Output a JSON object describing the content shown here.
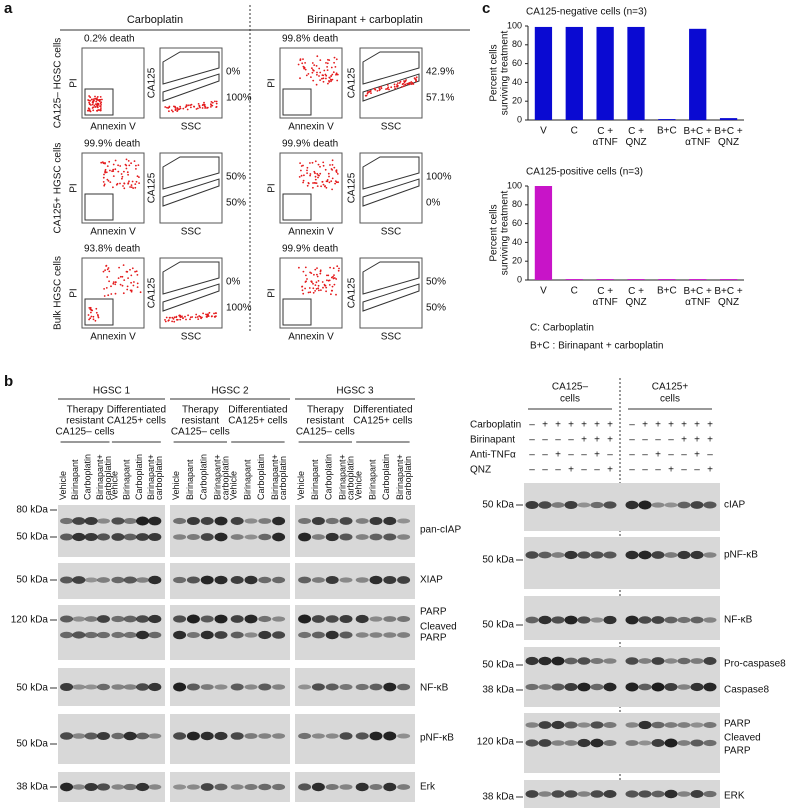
{
  "panel_labels": [
    "a",
    "b",
    "c"
  ],
  "panel_a": {
    "column_headers": [
      "Carboplatin",
      "Birinapant + carboplatin"
    ],
    "axis_labels": {
      "pi": "PI",
      "annexin": "Annexin V",
      "ca125": "CA125",
      "ssc": "SSC"
    },
    "rows": [
      {
        "label": "CA125– HGSC cells",
        "plots": [
          {
            "death": "0.2% death",
            "gates": [
              "0%",
              "100%"
            ]
          },
          {
            "death": "99.8% death",
            "gates": [
              "42.9%",
              "57.1%"
            ]
          }
        ]
      },
      {
        "label": "CA125+ HGSC cells",
        "plots": [
          {
            "death": "99.9% death",
            "gates": [
              "50%",
              "50%"
            ]
          },
          {
            "death": "99.9% death",
            "gates": [
              "100%",
              "0%"
            ]
          }
        ]
      },
      {
        "label": "Bulk HGSC cells",
        "plots": [
          {
            "death": "93.8% death",
            "gates": [
              "0%",
              "100%"
            ]
          },
          {
            "death": "99.9% death",
            "gates": [
              "50%",
              "50%"
            ]
          }
        ]
      }
    ]
  },
  "panel_b_left": {
    "cohorts": [
      "HGSC 1",
      "HGSC 2",
      "HGSC 3"
    ],
    "groups": [
      [
        "Therapy",
        "resistant",
        "CA125– cells"
      ],
      [
        "Differentiated",
        "CA125+ cells"
      ]
    ],
    "lanes": [
      [
        "Vehicle"
      ],
      [
        "Birinapant"
      ],
      [
        "Carboplatin"
      ],
      [
        "Birinapant+",
        "carboplatin"
      ]
    ],
    "blots": [
      {
        "markers": [
          "80 kDa",
          "50 kDa"
        ],
        "labels": [
          "pan-cIAP"
        ]
      },
      {
        "markers": [
          "50 kDa"
        ],
        "labels": [
          "XIAP"
        ]
      },
      {
        "markers": [
          "120 kDa"
        ],
        "labels": [
          "PARP",
          "Cleaved",
          "PARP"
        ]
      },
      {
        "markers": [
          "50 kDa"
        ],
        "labels": [
          "NF-κB"
        ]
      },
      {
        "markers": [
          "50 kDa"
        ],
        "labels": [
          "pNF-κB"
        ]
      },
      {
        "markers": [
          "38 kDa"
        ],
        "labels": [
          "Erk"
        ]
      }
    ]
  },
  "panel_b_right": {
    "groups": [
      [
        "CA125–",
        "cells"
      ],
      [
        "CA125+",
        "cells"
      ]
    ],
    "treatments": [
      {
        "name": "Carboplatin",
        "signs": [
          "–",
          "+",
          "+",
          "+",
          "+",
          "+",
          "+",
          "–",
          "+",
          "+",
          "+",
          "+",
          "+",
          "+"
        ]
      },
      {
        "name": "Birinapant",
        "signs": [
          "–",
          "–",
          "–",
          "–",
          "+",
          "+",
          "+",
          "–",
          "–",
          "–",
          "–",
          "+",
          "+",
          "+"
        ]
      },
      {
        "name": "Anti-TNFα",
        "signs": [
          "–",
          "–",
          "+",
          "–",
          "–",
          "+",
          "–",
          "–",
          "–",
          "+",
          "–",
          "–",
          "+",
          "–"
        ]
      },
      {
        "name": "QNZ",
        "signs": [
          "–",
          "–",
          "–",
          "+",
          "–",
          "–",
          "+",
          "–",
          "–",
          "–",
          "+",
          "–",
          "–",
          "+"
        ]
      }
    ],
    "blots": [
      {
        "markers": [
          "50 kDa"
        ],
        "labels": [
          "cIAP"
        ]
      },
      {
        "markers": [
          "50 kDa"
        ],
        "labels": [
          "pNF-κB"
        ]
      },
      {
        "markers": [
          "50 kDa"
        ],
        "labels": [
          "NF-κB"
        ]
      },
      {
        "markers": [
          "50 kDa",
          "38 kDa"
        ],
        "labels": [
          "Pro-caspase8",
          "Caspase8"
        ]
      },
      {
        "markers": [
          "120 kDa"
        ],
        "labels": [
          "PARP",
          "Cleaved",
          "PARP"
        ]
      },
      {
        "markers": [
          "38 kDa"
        ],
        "labels": [
          "ERK"
        ]
      }
    ]
  },
  "chart_data": [
    {
      "type": "bar",
      "title": "CA125-negative cells (n=3)",
      "ylabel": [
        "Percent cells",
        "surviving treatment"
      ],
      "categories": [
        "V",
        "C",
        "C + αTNF",
        "C + QNZ",
        "B+C",
        "B+C + αTNF",
        "B+C + QNZ"
      ],
      "values": [
        99,
        99,
        99,
        99,
        1,
        97,
        2
      ],
      "color": "#0a0ad2",
      "ylim": [
        0,
        100
      ],
      "yticks": [
        0,
        20,
        40,
        60,
        80,
        100
      ]
    },
    {
      "type": "bar",
      "title": "CA125-positive cells (n=3)",
      "ylabel": [
        "Percent cells",
        "surviving treatment"
      ],
      "categories": [
        "V",
        "C",
        "C + αTNF",
        "C + QNZ",
        "B+C",
        "B+C + αTNF",
        "B+C + QNZ"
      ],
      "values": [
        100,
        1,
        1,
        1,
        1,
        1,
        1
      ],
      "color": "#c814c8",
      "ylim": [
        0,
        100
      ],
      "yticks": [
        0,
        20,
        40,
        60,
        80,
        100
      ]
    }
  ],
  "notes": [
    "C: Carboplatin",
    "B+C : Birinapant + carboplatin"
  ]
}
